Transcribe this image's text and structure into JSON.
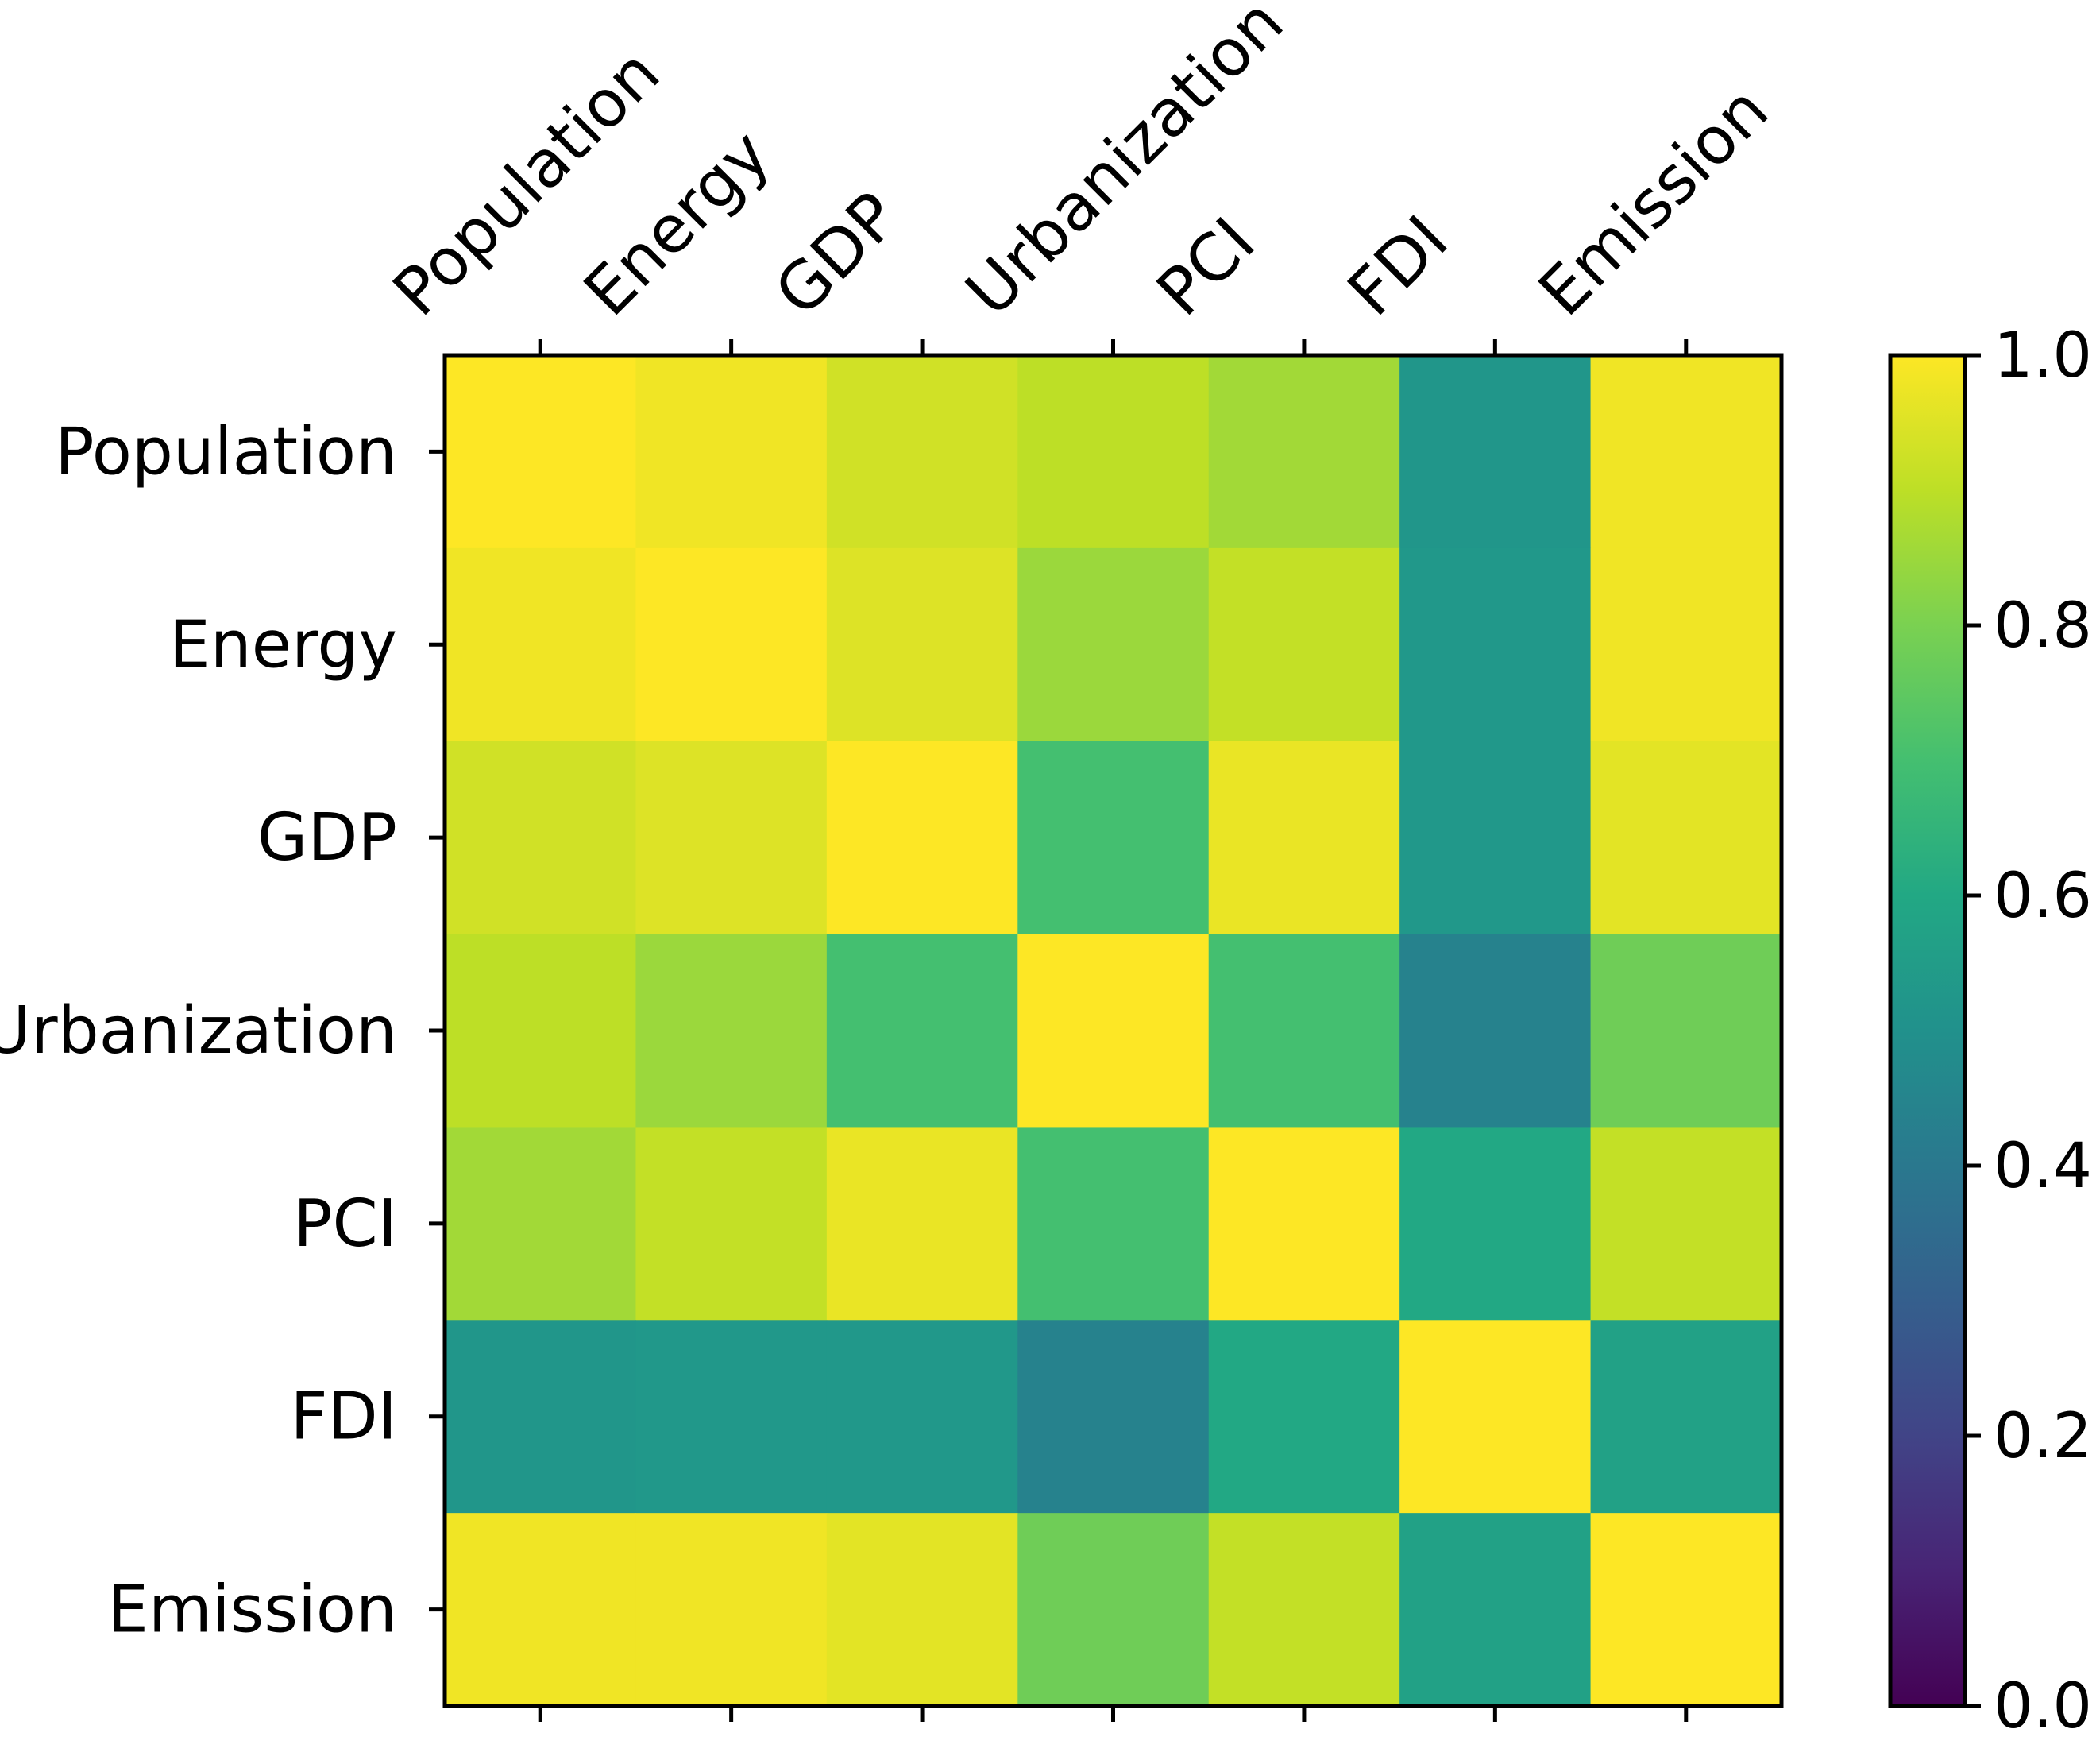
{
  "chart_data": {
    "type": "heatmap",
    "title": "",
    "xlabel": "",
    "ylabel": "",
    "colormap": "viridis",
    "x_categories": [
      "Population",
      "Energy",
      "GDP",
      "Urbanization",
      "PCI",
      "FDI",
      "Emission"
    ],
    "y_categories": [
      "Population",
      "Energy",
      "GDP",
      "Urbanization",
      "PCI",
      "FDI",
      "Emission"
    ],
    "values": [
      [
        1.0,
        0.98,
        0.93,
        0.9,
        0.86,
        0.52,
        0.98
      ],
      [
        0.98,
        1.0,
        0.95,
        0.85,
        0.91,
        0.53,
        0.98
      ],
      [
        0.93,
        0.95,
        1.0,
        0.7,
        0.97,
        0.53,
        0.96
      ],
      [
        0.9,
        0.85,
        0.7,
        1.0,
        0.7,
        0.44,
        0.78
      ],
      [
        0.86,
        0.91,
        0.97,
        0.7,
        1.0,
        0.6,
        0.91
      ],
      [
        0.52,
        0.53,
        0.53,
        0.44,
        0.6,
        1.0,
        0.57
      ],
      [
        0.98,
        0.98,
        0.96,
        0.78,
        0.91,
        0.57,
        1.0
      ]
    ],
    "colorbar": {
      "min": 0.0,
      "max": 1.0,
      "ticks": [
        0.0,
        0.2,
        0.4,
        0.6,
        0.8,
        1.0
      ],
      "tick_labels": [
        "0.0",
        "0.2",
        "0.4",
        "0.6",
        "0.8",
        "1.0"
      ]
    }
  }
}
